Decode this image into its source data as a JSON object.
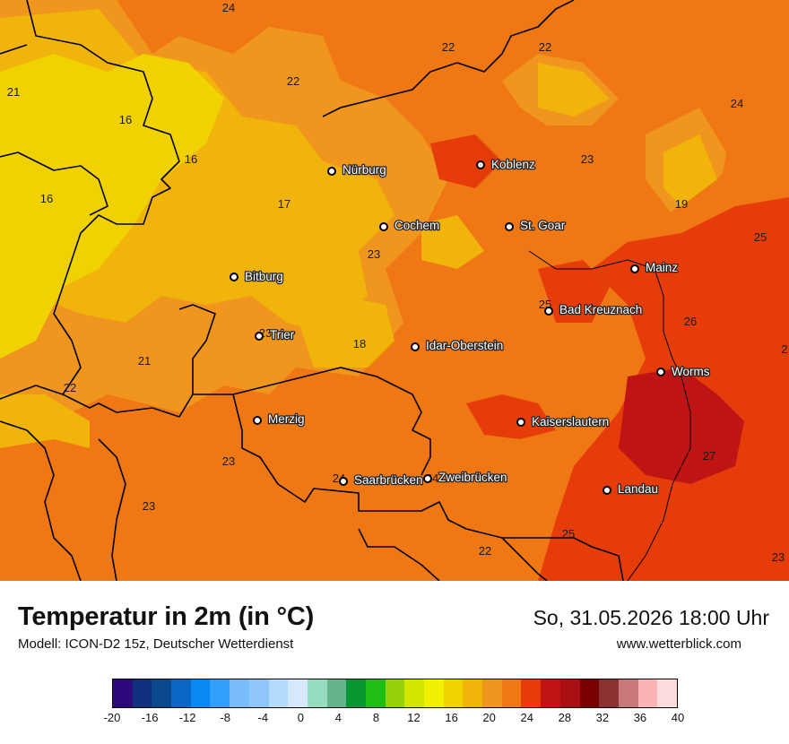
{
  "title": "Temperatur in 2m (in °C)",
  "model_info": "Modell: ICON-D2 15z, Deutscher Wetterdienst",
  "datetime": "So, 31.05.2026 18:00 Uhr",
  "website": "www.wetterblick.com",
  "cities": [
    {
      "name": "Nürburg"
    },
    {
      "name": "Koblenz"
    },
    {
      "name": "Cochem"
    },
    {
      "name": "St. Goar"
    },
    {
      "name": "Mainz"
    },
    {
      "name": "Bitburg"
    },
    {
      "name": "Bad Kreuznach"
    },
    {
      "name": "Trier"
    },
    {
      "name": "Idar-Oberstein"
    },
    {
      "name": "Worms"
    },
    {
      "name": "Merzig"
    },
    {
      "name": "Kaiserslautern"
    },
    {
      "name": "Saarbrücken"
    },
    {
      "name": "Zweibrücken"
    },
    {
      "name": "Landau"
    }
  ],
  "value_labels": [
    "24",
    "22",
    "22",
    "21",
    "22",
    "16",
    "24",
    "16",
    "23",
    "16",
    "17",
    "19",
    "25",
    "23",
    "25",
    "23",
    "18",
    "21",
    "22",
    "26",
    "2",
    "27",
    "23",
    "24",
    "24",
    "23",
    "22",
    "25",
    "23"
  ],
  "legend": {
    "colors": [
      "#2c0a7c",
      "#10307e",
      "#0a4a8c",
      "#0a66c4",
      "#0a87f0",
      "#32a0fa",
      "#78bcfa",
      "#8ec6fc",
      "#b4dafc",
      "#d6e9fc",
      "#96dcbe",
      "#64b48c",
      "#0a9632",
      "#1ebe14",
      "#96d20a",
      "#d2e600",
      "#f0f000",
      "#f0d200",
      "#f0b40a",
      "#f0961e",
      "#f07814",
      "#e63c0a",
      "#be1414",
      "#aa0f14",
      "#780000",
      "#8c3232",
      "#c87878",
      "#fab4b4",
      "#fadcdc"
    ],
    "ticks": [
      "-20",
      "-16",
      "-12",
      "-8",
      "-4",
      "0",
      "4",
      "8",
      "12",
      "16",
      "20",
      "24",
      "28",
      "32",
      "36",
      "40"
    ]
  }
}
